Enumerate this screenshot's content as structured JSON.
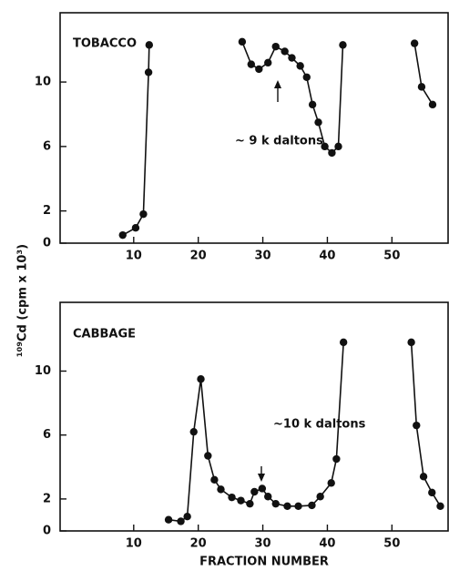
{
  "ylabel": "¹⁰⁹Cd (cpm x 10³)",
  "xlabel": "FRACTION NUMBER",
  "chart_data": [
    {
      "type": "line",
      "title": "TOBACCO",
      "annotation": "~ 9 k daltons",
      "xlim": [
        -1.4,
        58.7
      ],
      "xticks": [
        10,
        20,
        30,
        40,
        50
      ],
      "ylim": [
        0,
        14.3
      ],
      "yticks": [
        0,
        2,
        6,
        10
      ],
      "series": [
        {
          "color": "#111111",
          "x": [
            8.3,
            10.3,
            11.5,
            12.3,
            12.4,
            null,
            26.8,
            28.2,
            29.4,
            30.8,
            32,
            33.4,
            34.5,
            35.8,
            36.8,
            37.7,
            38.6,
            39.6,
            40.7,
            41.7,
            42.4,
            null,
            53.5,
            54.6,
            56.3
          ],
          "values": [
            0.5,
            0.95,
            1.8,
            10.6,
            12.3,
            null,
            12.5,
            11.1,
            10.8,
            11.2,
            12.2,
            11.9,
            11.5,
            11,
            10.3,
            8.6,
            7.5,
            6,
            5.6,
            6,
            12.3,
            null,
            12.4,
            9.7,
            8.6
          ]
        }
      ]
    },
    {
      "type": "line",
      "title": "CABBAGE",
      "annotation": "~10 k daltons",
      "xlim": [
        -1.4,
        58.7
      ],
      "xticks": [
        10,
        20,
        30,
        40,
        50
      ],
      "ylim": [
        0,
        14.3
      ],
      "yticks": [
        0,
        2,
        6,
        10
      ],
      "series": [
        {
          "color": "#111111",
          "x": [
            15.4,
            17.3,
            18.3,
            19.3,
            20.4,
            21.5,
            22.5,
            23.5,
            25.2,
            26.6,
            28,
            28.7,
            29.9,
            30.8,
            32,
            33.8,
            35.5,
            37.6,
            38.9,
            40.6,
            41.4,
            42.5,
            null,
            53,
            53.8,
            54.9,
            56.2,
            57.5
          ],
          "values": [
            0.7,
            0.6,
            0.9,
            6.2,
            9.5,
            4.7,
            3.2,
            2.6,
            2.1,
            1.9,
            1.7,
            2.45,
            2.65,
            2.15,
            1.7,
            1.55,
            1.55,
            1.6,
            2.15,
            3,
            4.5,
            11.8,
            null,
            11.8,
            6.6,
            3.4,
            2.4,
            1.55
          ]
        }
      ]
    }
  ]
}
